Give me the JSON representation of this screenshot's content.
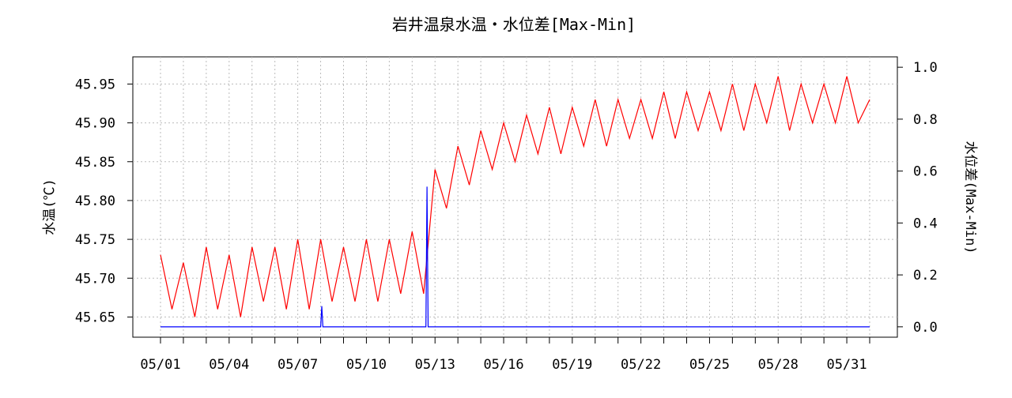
{
  "chart_data": {
    "type": "line",
    "title": "岩井温泉水温・水位差[Max-Min]",
    "y_label": "水温(℃)",
    "y2_label": "水位差(Max-Min)",
    "xlim": [
      -0.21,
      33.21
    ],
    "xticks": [
      {
        "value": 1,
        "label": "05/01"
      },
      {
        "value": 4,
        "label": "05/04"
      },
      {
        "value": 7,
        "label": "05/07"
      },
      {
        "value": 10,
        "label": "05/10"
      },
      {
        "value": 13,
        "label": "05/13"
      },
      {
        "value": 16,
        "label": "05/16"
      },
      {
        "value": 19,
        "label": "05/19"
      },
      {
        "value": 22,
        "label": "05/22"
      },
      {
        "value": 25,
        "label": "05/25"
      },
      {
        "value": 28,
        "label": "05/28"
      },
      {
        "value": 31,
        "label": "05/31"
      }
    ],
    "x_minor_ticks": [
      2,
      3,
      5,
      6,
      8,
      9,
      11,
      12,
      14,
      15,
      17,
      18,
      20,
      21,
      23,
      24,
      26,
      27,
      29,
      30,
      32
    ],
    "ylim": [
      45.624,
      45.985
    ],
    "yticks": [
      45.65,
      {
        "value": 45.7,
        "label": "45.70"
      },
      45.75,
      {
        "value": 45.8,
        "label": "45.80"
      },
      45.85,
      {
        "value": 45.9,
        "label": "45.90"
      },
      45.95
    ],
    "y2lim": [
      -0.04,
      1.04
    ],
    "y2ticks": [
      {
        "value": 0,
        "label": "0.0"
      },
      0.2,
      0.4,
      0.6,
      0.8,
      {
        "value": 1,
        "label": "1.0"
      }
    ],
    "grid": true,
    "series": [
      {
        "color": "#ff0000",
        "x": [
          1,
          1.5,
          2,
          2.5,
          3,
          3.5,
          4,
          4.5,
          5,
          5.5,
          6,
          6.5,
          7,
          7.5,
          8,
          8.5,
          9,
          9.5,
          10,
          10.5,
          11,
          11.5,
          12,
          12.5,
          13,
          13.5,
          14,
          14.5,
          15,
          15.5,
          16,
          16.5,
          17,
          17.5,
          18,
          18.5,
          19,
          19.5,
          20,
          20.5,
          21,
          21.5,
          22,
          22.5,
          23,
          23.5,
          24,
          24.5,
          25,
          25.5,
          26,
          26.5,
          27,
          27.5,
          28,
          28.5,
          29,
          29.5,
          30,
          30.5,
          31,
          31.5,
          32
        ],
        "values": [
          45.73,
          45.66,
          45.72,
          45.65,
          45.74,
          45.66,
          45.73,
          45.65,
          45.74,
          45.67,
          45.74,
          45.66,
          45.75,
          45.66,
          45.75,
          45.67,
          45.74,
          45.67,
          45.75,
          45.67,
          45.75,
          45.68,
          45.76,
          45.68,
          45.84,
          45.79,
          45.87,
          45.82,
          45.89,
          45.84,
          45.9,
          45.85,
          45.91,
          45.86,
          45.92,
          45.86,
          45.92,
          45.87,
          45.93,
          45.87,
          45.93,
          45.88,
          45.93,
          45.88,
          45.94,
          45.88,
          45.94,
          45.89,
          45.94,
          45.89,
          45.95,
          45.89,
          45.95,
          45.9,
          45.96,
          45.89,
          45.95,
          45.9,
          45.95,
          45.9,
          45.96,
          45.9,
          45.93
        ]
      },
      {
        "color": "#0000ff",
        "axis": "y2",
        "x": [
          1,
          8,
          8.05,
          8.1,
          12.6,
          12.65,
          12.7,
          32
        ],
        "values": [
          0,
          0,
          0.08,
          0,
          0,
          0.54,
          0,
          0
        ]
      }
    ]
  }
}
